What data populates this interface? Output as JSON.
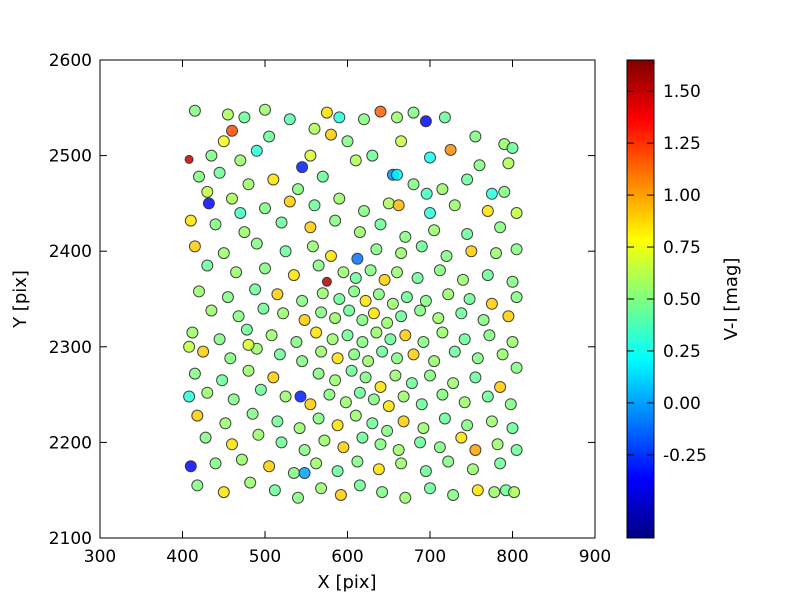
{
  "chart_data": {
    "type": "scatter",
    "title": "",
    "xlabel": "X [pix]",
    "ylabel": "Y [pix]",
    "xlim": [
      300,
      900
    ],
    "ylim": [
      2100,
      2600
    ],
    "xticks": [
      300,
      400,
      500,
      600,
      700,
      800,
      900
    ],
    "yticks": [
      2100,
      2200,
      2300,
      2400,
      2500,
      2600
    ],
    "grid": false,
    "legend": "none",
    "colorbar": {
      "label": "V-I [mag]",
      "tick_labels": [
        "1.50",
        "1.25",
        "1.00",
        "0.75",
        "0.50",
        "0.25",
        "0.00",
        "-0.25"
      ],
      "tick_values": [
        1.5,
        1.25,
        1.0,
        0.75,
        0.5,
        0.25,
        0.0,
        -0.25
      ],
      "vmin": -0.65,
      "vmax": 1.65,
      "colormap": "jet"
    },
    "marker": {
      "radius": 5.5,
      "edge_color": "#333333",
      "fill_opacity": 0.85
    },
    "points_format": [
      "x_pix",
      "y_pix",
      "v_i_mag",
      "radius_optional"
    ],
    "points": [
      [
        415,
        2547,
        0.5
      ],
      [
        455,
        2543,
        0.6
      ],
      [
        475,
        2540,
        0.45
      ],
      [
        500,
        2548,
        0.55
      ],
      [
        530,
        2538,
        0.4
      ],
      [
        575,
        2545,
        0.85
      ],
      [
        590,
        2540,
        0.3
      ],
      [
        620,
        2538,
        0.5
      ],
      [
        640,
        2546,
        1.15
      ],
      [
        660,
        2540,
        0.55
      ],
      [
        680,
        2545,
        0.5
      ],
      [
        695,
        2536,
        -0.35
      ],
      [
        718,
        2540,
        0.45
      ],
      [
        460,
        2526,
        1.2
      ],
      [
        505,
        2520,
        0.45
      ],
      [
        560,
        2528,
        0.6
      ],
      [
        580,
        2522,
        0.9
      ],
      [
        600,
        2515,
        0.5
      ],
      [
        725,
        2506,
        1.05
      ],
      [
        755,
        2520,
        0.5
      ],
      [
        790,
        2512,
        0.55
      ],
      [
        800,
        2508,
        0.45
      ],
      [
        408,
        2496,
        1.5,
        4
      ],
      [
        435,
        2500,
        0.5
      ],
      [
        470,
        2495,
        0.55
      ],
      [
        490,
        2505,
        0.3
      ],
      [
        545,
        2488,
        -0.3
      ],
      [
        610,
        2495,
        0.6
      ],
      [
        630,
        2500,
        0.45
      ],
      [
        700,
        2498,
        0.25
      ],
      [
        760,
        2490,
        0.5
      ],
      [
        795,
        2492,
        0.6
      ],
      [
        420,
        2478,
        0.5
      ],
      [
        445,
        2482,
        0.45
      ],
      [
        480,
        2470,
        0.55
      ],
      [
        510,
        2475,
        0.85
      ],
      [
        540,
        2465,
        0.5
      ],
      [
        570,
        2478,
        0.45
      ],
      [
        655,
        2480,
        -0.05
      ],
      [
        680,
        2470,
        0.5
      ],
      [
        715,
        2465,
        0.55
      ],
      [
        745,
        2475,
        0.45
      ],
      [
        790,
        2462,
        0.5
      ],
      [
        432,
        2450,
        -0.35
      ],
      [
        460,
        2455,
        0.6
      ],
      [
        500,
        2445,
        0.5
      ],
      [
        530,
        2452,
        0.9
      ],
      [
        560,
        2448,
        0.45
      ],
      [
        590,
        2455,
        0.55
      ],
      [
        620,
        2442,
        0.5
      ],
      [
        650,
        2450,
        0.6
      ],
      [
        700,
        2440,
        0.3
      ],
      [
        730,
        2448,
        0.55
      ],
      [
        770,
        2442,
        0.85
      ],
      [
        410,
        2432,
        0.85
      ],
      [
        440,
        2428,
        0.5
      ],
      [
        475,
        2420,
        0.55
      ],
      [
        520,
        2430,
        0.45
      ],
      [
        555,
        2425,
        0.9
      ],
      [
        585,
        2432,
        0.5
      ],
      [
        615,
        2420,
        0.55
      ],
      [
        640,
        2428,
        0.45
      ],
      [
        670,
        2415,
        0.5
      ],
      [
        705,
        2422,
        0.55
      ],
      [
        745,
        2418,
        0.45
      ],
      [
        785,
        2425,
        0.5
      ],
      [
        415,
        2405,
        0.9
      ],
      [
        450,
        2398,
        0.55
      ],
      [
        490,
        2408,
        0.5
      ],
      [
        525,
        2400,
        0.45
      ],
      [
        558,
        2405,
        0.55
      ],
      [
        580,
        2395,
        0.85
      ],
      [
        612,
        2392,
        -0.1
      ],
      [
        635,
        2402,
        0.5
      ],
      [
        665,
        2398,
        0.55
      ],
      [
        690,
        2405,
        0.45
      ],
      [
        720,
        2395,
        0.5
      ],
      [
        750,
        2400,
        0.9
      ],
      [
        780,
        2398,
        0.55
      ],
      [
        805,
        2402,
        0.5
      ],
      [
        430,
        2385,
        0.45
      ],
      [
        465,
        2378,
        0.55
      ],
      [
        500,
        2382,
        0.5
      ],
      [
        535,
        2375,
        0.85
      ],
      [
        565,
        2385,
        0.5
      ],
      [
        575,
        2368,
        1.55,
        4.5
      ],
      [
        595,
        2378,
        0.55
      ],
      [
        610,
        2372,
        0.45
      ],
      [
        628,
        2380,
        0.5
      ],
      [
        645,
        2370,
        0.9
      ],
      [
        660,
        2378,
        0.55
      ],
      [
        685,
        2372,
        0.45
      ],
      [
        712,
        2380,
        0.5
      ],
      [
        740,
        2370,
        0.55
      ],
      [
        770,
        2375,
        0.45
      ],
      [
        800,
        2368,
        0.5
      ],
      [
        420,
        2358,
        0.55
      ],
      [
        455,
        2352,
        0.5
      ],
      [
        488,
        2360,
        0.45
      ],
      [
        515,
        2355,
        0.9
      ],
      [
        545,
        2348,
        0.5
      ],
      [
        570,
        2356,
        0.55
      ],
      [
        590,
        2350,
        0.45
      ],
      [
        608,
        2358,
        0.5
      ],
      [
        622,
        2348,
        0.85
      ],
      [
        638,
        2355,
        0.5
      ],
      [
        655,
        2345,
        0.55
      ],
      [
        672,
        2352,
        0.45
      ],
      [
        695,
        2348,
        0.5
      ],
      [
        722,
        2355,
        0.55
      ],
      [
        748,
        2350,
        0.45
      ],
      [
        775,
        2345,
        0.9
      ],
      [
        805,
        2352,
        0.5
      ],
      [
        435,
        2338,
        0.55
      ],
      [
        468,
        2332,
        0.5
      ],
      [
        498,
        2340,
        0.45
      ],
      [
        522,
        2335,
        0.55
      ],
      [
        548,
        2328,
        0.9
      ],
      [
        568,
        2336,
        0.5
      ],
      [
        585,
        2330,
        0.55
      ],
      [
        602,
        2338,
        0.45
      ],
      [
        618,
        2328,
        0.5
      ],
      [
        632,
        2335,
        0.85
      ],
      [
        648,
        2325,
        0.55
      ],
      [
        665,
        2332,
        0.45
      ],
      [
        688,
        2338,
        0.5
      ],
      [
        710,
        2330,
        0.55
      ],
      [
        738,
        2335,
        0.45
      ],
      [
        765,
        2328,
        0.5
      ],
      [
        795,
        2332,
        0.9
      ],
      [
        412,
        2315,
        0.55
      ],
      [
        445,
        2308,
        0.5
      ],
      [
        478,
        2318,
        0.45
      ],
      [
        508,
        2312,
        0.55
      ],
      [
        538,
        2305,
        0.5
      ],
      [
        562,
        2315,
        0.85
      ],
      [
        582,
        2308,
        0.55
      ],
      [
        600,
        2312,
        0.45
      ],
      [
        618,
        2305,
        0.5
      ],
      [
        635,
        2315,
        0.55
      ],
      [
        652,
        2308,
        0.45
      ],
      [
        670,
        2312,
        0.9
      ],
      [
        692,
        2305,
        0.5
      ],
      [
        715,
        2315,
        0.55
      ],
      [
        742,
        2308,
        0.45
      ],
      [
        772,
        2312,
        0.5
      ],
      [
        800,
        2305,
        0.55
      ],
      [
        425,
        2295,
        0.9
      ],
      [
        458,
        2288,
        0.5
      ],
      [
        490,
        2298,
        0.55
      ],
      [
        518,
        2292,
        0.45
      ],
      [
        545,
        2285,
        0.5
      ],
      [
        568,
        2295,
        0.55
      ],
      [
        588,
        2288,
        0.85
      ],
      [
        608,
        2292,
        0.5
      ],
      [
        625,
        2285,
        0.55
      ],
      [
        642,
        2295,
        0.45
      ],
      [
        660,
        2288,
        0.5
      ],
      [
        680,
        2292,
        0.9
      ],
      [
        705,
        2285,
        0.55
      ],
      [
        730,
        2295,
        0.45
      ],
      [
        758,
        2288,
        0.5
      ],
      [
        788,
        2292,
        0.55
      ],
      [
        415,
        2272,
        0.5
      ],
      [
        448,
        2265,
        0.45
      ],
      [
        480,
        2275,
        0.55
      ],
      [
        510,
        2268,
        0.9
      ],
      [
        543,
        2248,
        -0.3
      ],
      [
        565,
        2272,
        0.5
      ],
      [
        585,
        2265,
        0.55
      ],
      [
        605,
        2275,
        0.45
      ],
      [
        622,
        2268,
        0.5
      ],
      [
        640,
        2258,
        0.85
      ],
      [
        658,
        2270,
        0.55
      ],
      [
        678,
        2262,
        0.45
      ],
      [
        700,
        2270,
        0.5
      ],
      [
        728,
        2262,
        0.55
      ],
      [
        755,
        2268,
        0.45
      ],
      [
        785,
        2258,
        0.9
      ],
      [
        805,
        2278,
        0.5
      ],
      [
        430,
        2252,
        0.55
      ],
      [
        462,
        2245,
        0.5
      ],
      [
        495,
        2255,
        0.45
      ],
      [
        525,
        2248,
        0.55
      ],
      [
        555,
        2240,
        0.9
      ],
      [
        578,
        2250,
        0.5
      ],
      [
        598,
        2242,
        0.55
      ],
      [
        615,
        2252,
        0.45
      ],
      [
        632,
        2245,
        0.5
      ],
      [
        650,
        2238,
        0.85
      ],
      [
        668,
        2248,
        0.55
      ],
      [
        690,
        2240,
        0.45
      ],
      [
        715,
        2250,
        0.5
      ],
      [
        742,
        2242,
        0.55
      ],
      [
        770,
        2248,
        0.45
      ],
      [
        798,
        2240,
        0.5
      ],
      [
        418,
        2228,
        0.9
      ],
      [
        452,
        2220,
        0.55
      ],
      [
        485,
        2230,
        0.5
      ],
      [
        515,
        2222,
        0.45
      ],
      [
        542,
        2215,
        0.55
      ],
      [
        565,
        2225,
        0.5
      ],
      [
        588,
        2218,
        0.85
      ],
      [
        610,
        2228,
        0.55
      ],
      [
        630,
        2220,
        0.45
      ],
      [
        648,
        2212,
        0.5
      ],
      [
        668,
        2222,
        0.9
      ],
      [
        692,
        2215,
        0.55
      ],
      [
        718,
        2225,
        0.45
      ],
      [
        745,
        2218,
        0.5
      ],
      [
        775,
        2222,
        0.55
      ],
      [
        800,
        2215,
        0.45
      ],
      [
        428,
        2205,
        0.5
      ],
      [
        460,
        2198,
        0.85
      ],
      [
        492,
        2208,
        0.55
      ],
      [
        520,
        2200,
        0.45
      ],
      [
        548,
        2192,
        0.5
      ],
      [
        572,
        2202,
        0.55
      ],
      [
        595,
        2195,
        0.9
      ],
      [
        618,
        2205,
        0.45
      ],
      [
        640,
        2198,
        0.5
      ],
      [
        662,
        2192,
        0.55
      ],
      [
        688,
        2200,
        0.45
      ],
      [
        712,
        2195,
        0.5
      ],
      [
        738,
        2205,
        0.85
      ],
      [
        755,
        2192,
        1.0
      ],
      [
        782,
        2198,
        0.55
      ],
      [
        805,
        2192,
        0.45
      ],
      [
        410,
        2175,
        -0.35
      ],
      [
        440,
        2178,
        0.5
      ],
      [
        472,
        2182,
        0.55
      ],
      [
        505,
        2175,
        0.9
      ],
      [
        535,
        2168,
        0.5
      ],
      [
        548,
        2168,
        0.0
      ],
      [
        562,
        2178,
        0.55
      ],
      [
        588,
        2170,
        0.45
      ],
      [
        612,
        2180,
        0.5
      ],
      [
        638,
        2172,
        0.85
      ],
      [
        665,
        2178,
        0.55
      ],
      [
        695,
        2170,
        0.45
      ],
      [
        722,
        2180,
        0.5
      ],
      [
        752,
        2172,
        0.55
      ],
      [
        785,
        2178,
        0.45
      ],
      [
        418,
        2155,
        0.5
      ],
      [
        450,
        2148,
        0.85
      ],
      [
        482,
        2158,
        0.55
      ],
      [
        512,
        2150,
        0.45
      ],
      [
        540,
        2142,
        0.5
      ],
      [
        568,
        2152,
        0.55
      ],
      [
        592,
        2145,
        0.9
      ],
      [
        615,
        2155,
        0.45
      ],
      [
        642,
        2148,
        0.5
      ],
      [
        670,
        2142,
        0.55
      ],
      [
        700,
        2152,
        0.45
      ],
      [
        728,
        2145,
        0.5
      ],
      [
        758,
        2150,
        0.85
      ],
      [
        778,
        2148,
        0.55
      ],
      [
        792,
        2150,
        0.45
      ],
      [
        408,
        2248,
        0.3
      ],
      [
        802,
        2148,
        0.6
      ],
      [
        696,
        2460,
        0.35
      ],
      [
        555,
        2500,
        0.7
      ],
      [
        665,
        2515,
        0.65
      ],
      [
        450,
        2515,
        0.75
      ],
      [
        430,
        2462,
        0.65
      ],
      [
        775,
        2460,
        0.3
      ],
      [
        805,
        2440,
        0.65
      ],
      [
        470,
        2440,
        0.35
      ],
      [
        408,
        2300,
        0.65
      ],
      [
        480,
        2302,
        0.7
      ],
      [
        660,
        2480,
        0.2
      ],
      [
        662,
        2448,
        0.95
      ]
    ]
  }
}
